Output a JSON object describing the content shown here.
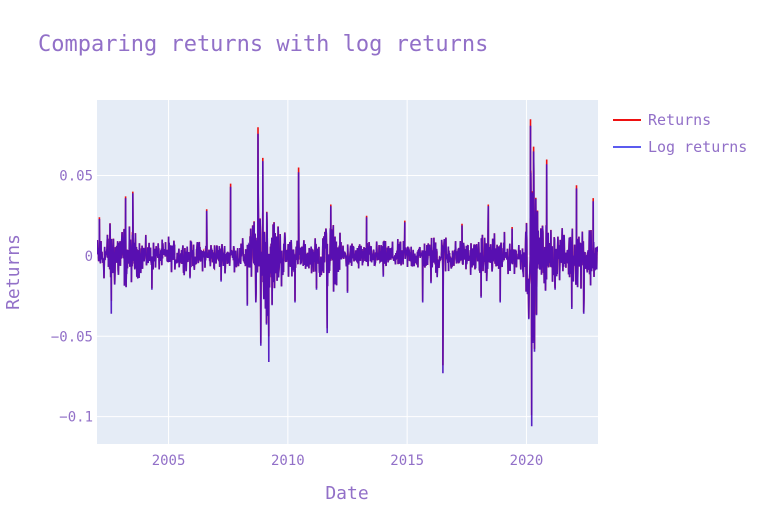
{
  "chart_data": {
    "type": "line",
    "title": "Comparing returns with log returns",
    "xlabel": "Date",
    "ylabel": "Returns",
    "xlim": [
      2002.0,
      2023.0
    ],
    "ylim": [
      -0.117,
      0.097
    ],
    "x_ticks": [
      2005,
      2010,
      2015,
      2020
    ],
    "x_tick_labels": [
      "2005",
      "2010",
      "2015",
      "2020"
    ],
    "y_ticks": [
      0.05,
      0,
      -0.05,
      -0.1
    ],
    "y_tick_labels": [
      "0.05",
      "0",
      "−0.05",
      "−0.1"
    ],
    "grid": true,
    "legend_position": "top-right",
    "series": [
      {
        "name": "Returns",
        "color": "#ee1111",
        "x": [
          2002.1,
          2002.6,
          2003.2,
          2003.5,
          2004.3,
          2005.0,
          2005.9,
          2006.6,
          2007.2,
          2007.6,
          2008.3,
          2008.75,
          2008.95,
          2009.2,
          2009.6,
          2010.3,
          2010.45,
          2011.2,
          2011.65,
          2011.8,
          2012.5,
          2013.3,
          2014.0,
          2014.9,
          2015.65,
          2016.0,
          2016.45,
          2016.5,
          2017.3,
          2018.1,
          2018.4,
          2018.9,
          2019.4,
          2020.05,
          2020.17,
          2020.22,
          2020.3,
          2020.45,
          2020.85,
          2021.2,
          2021.9,
          2022.1,
          2022.4,
          2022.8
        ],
        "y": [
          0.024,
          -0.028,
          0.037,
          0.04,
          -0.02,
          0.012,
          -0.013,
          0.029,
          -0.015,
          0.045,
          -0.03,
          0.08,
          0.061,
          -0.05,
          0.015,
          -0.028,
          0.055,
          -0.02,
          -0.045,
          0.032,
          -0.022,
          0.025,
          -0.012,
          0.022,
          -0.028,
          -0.016,
          0.01,
          -0.068,
          0.02,
          -0.025,
          0.032,
          -0.028,
          0.018,
          -0.02,
          0.085,
          -0.099,
          0.068,
          0.02,
          0.06,
          -0.02,
          -0.032,
          0.044,
          -0.035,
          0.036
        ]
      },
      {
        "name": "Log returns",
        "color": "#5b5bef",
        "x": [
          2002.1,
          2002.6,
          2003.2,
          2003.5,
          2004.3,
          2005.0,
          2005.9,
          2006.6,
          2007.2,
          2007.6,
          2008.3,
          2008.75,
          2008.95,
          2009.2,
          2009.6,
          2010.3,
          2010.45,
          2011.2,
          2011.65,
          2011.8,
          2012.5,
          2013.3,
          2014.0,
          2014.9,
          2015.65,
          2016.0,
          2016.45,
          2016.5,
          2017.3,
          2018.1,
          2018.4,
          2018.9,
          2019.4,
          2020.05,
          2020.17,
          2020.22,
          2020.3,
          2020.45,
          2020.85,
          2021.2,
          2021.9,
          2022.1,
          2022.4,
          2022.8
        ],
        "y": [
          0.023,
          -0.036,
          0.036,
          0.039,
          -0.021,
          0.012,
          -0.014,
          0.028,
          -0.016,
          0.043,
          -0.031,
          0.076,
          0.059,
          -0.066,
          0.015,
          -0.029,
          0.052,
          -0.021,
          -0.048,
          0.031,
          -0.023,
          0.024,
          -0.013,
          0.021,
          -0.029,
          -0.017,
          0.01,
          -0.073,
          0.019,
          -0.026,
          0.031,
          -0.029,
          0.017,
          -0.021,
          0.081,
          -0.106,
          0.065,
          0.019,
          0.057,
          -0.021,
          -0.033,
          0.042,
          -0.036,
          0.034
        ]
      }
    ]
  }
}
